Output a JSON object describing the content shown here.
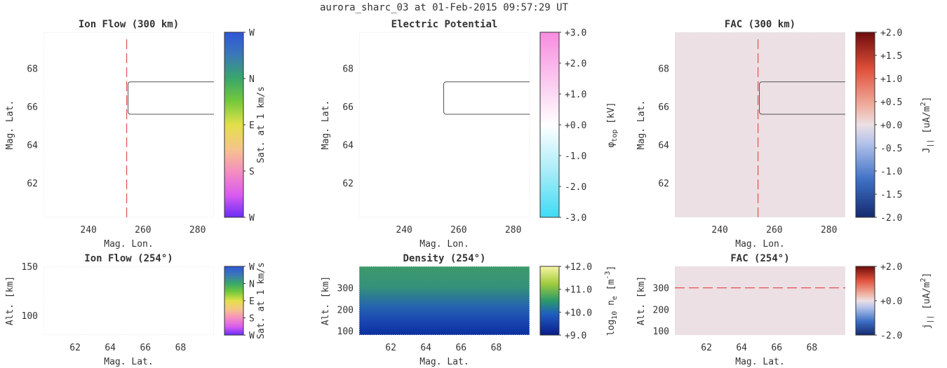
{
  "figure": {
    "title": "aurora_sharc_03 at 01-Feb-2015 09:57:29 UT"
  },
  "colors": {
    "background": "#ffffff",
    "fac_background": "#ece0e4",
    "density_top": "#3b9a6e",
    "density_bottom": "#1535a8",
    "dashed_marker": "#e05050",
    "contour": "#555555"
  },
  "chart_data": [
    {
      "id": "ion-flow-300",
      "type": "heatmap",
      "title": "Ion Flow (300 km)",
      "xlabel": "Mag. Lon.",
      "ylabel": "Mag. Lat.",
      "xlim": [
        223.5,
        286
      ],
      "ylim": [
        60.2,
        69.9
      ],
      "xticks": [
        "240",
        "260",
        "280"
      ],
      "xtick_values": [
        240,
        260,
        280
      ],
      "yticks": [
        "62",
        "64",
        "66",
        "68"
      ],
      "ytick_values": [
        62,
        64,
        66,
        68
      ],
      "background": "#ffffff",
      "vline_x": 254,
      "contour": {
        "x_start": 254.5,
        "y_bottom": 65.6,
        "y_top": 67.3
      },
      "colorbar": {
        "colormap": "direction",
        "ticks": [
          "W",
          "N",
          "E",
          "S",
          "W"
        ],
        "label": "Sat. at 1 km/s"
      }
    },
    {
      "id": "electric-potential",
      "type": "heatmap",
      "title": "Electric Potential",
      "xlabel": "Mag. Lon.",
      "ylabel": "Mag. Lat.",
      "xlim": [
        223.5,
        286
      ],
      "ylim": [
        60.2,
        69.9
      ],
      "xticks": [
        "240",
        "260",
        "280"
      ],
      "xtick_values": [
        240,
        260,
        280
      ],
      "yticks": [
        "62",
        "64",
        "66",
        "68"
      ],
      "ytick_values": [
        62,
        64,
        66,
        68
      ],
      "background": "#ffffff",
      "contour": {
        "x_start": 254.5,
        "y_bottom": 65.6,
        "y_top": 67.3
      },
      "colorbar": {
        "colormap": "potential",
        "ticks": [
          "+3.0",
          "+2.0",
          "+1.0",
          "+0.0",
          "-1.0",
          "-2.0",
          "-3.0"
        ],
        "label": "φ top [kV]",
        "label_main": "φ",
        "label_sub": "top",
        "label_unit": " [kV]"
      }
    },
    {
      "id": "fac-300",
      "type": "heatmap",
      "title": "FAC (300 km)",
      "xlabel": "Mag. Lon.",
      "ylabel": "Mag. Lat.",
      "xlim": [
        223.5,
        286
      ],
      "ylim": [
        60.2,
        69.9
      ],
      "xticks": [
        "240",
        "260",
        "280"
      ],
      "xtick_values": [
        240,
        260,
        280
      ],
      "yticks": [
        "62",
        "64",
        "66",
        "68"
      ],
      "ytick_values": [
        62,
        64,
        66,
        68
      ],
      "background": "#ece0e4",
      "vline_x": 254,
      "contour": {
        "x_start": 254.5,
        "y_bottom": 65.6,
        "y_top": 67.3
      },
      "colorbar": {
        "colormap": "fac",
        "ticks": [
          "+2.0",
          "+1.5",
          "+1.0",
          "+0.5",
          "+0.0",
          "-0.5",
          "-1.0",
          "-1.5",
          "-2.0"
        ],
        "label": "J || [uA/m 2]",
        "label_main": "J",
        "label_sub": "||",
        "label_unit": " [uA/m",
        "label_sup": "2",
        "label_end": "]"
      }
    },
    {
      "id": "ion-flow-254",
      "type": "heatmap",
      "title": "Ion Flow (254°)",
      "xlabel": "Mag. Lat.",
      "ylabel": "Alt. [km]",
      "xlim": [
        60.2,
        69.9
      ],
      "ylim": [
        80,
        150
      ],
      "xticks": [
        "62",
        "64",
        "66",
        "68"
      ],
      "xtick_values": [
        62,
        64,
        66,
        68
      ],
      "yticks": [
        "100",
        "150"
      ],
      "ytick_values": [
        100,
        150
      ],
      "background": "#ffffff",
      "colorbar": {
        "colormap": "direction",
        "ticks": [
          "W",
          "N",
          "E",
          "S",
          "W"
        ],
        "label": "Sat. at 1 km/s"
      }
    },
    {
      "id": "density-254",
      "type": "heatmap",
      "title": "Density (254°)",
      "xlabel": "Mag. Lat.",
      "ylabel": "Alt. [km]",
      "xlim": [
        60.2,
        69.9
      ],
      "ylim": [
        80,
        400
      ],
      "xticks": [
        "62",
        "64",
        "66",
        "68"
      ],
      "xtick_values": [
        62,
        64,
        66,
        68
      ],
      "yticks": [
        "100",
        "200",
        "300"
      ],
      "ytick_values": [
        100,
        200,
        300
      ],
      "background": "density",
      "colorbar": {
        "colormap": "density",
        "ticks": [
          "+12.0",
          "+11.0",
          "+10.0",
          "+9.0"
        ],
        "label": "log 10 n e [m -3]",
        "label_main": "log",
        "label_sub": "10",
        "label_mid": " n",
        "label_sub2": "e",
        "label_unit": " [m",
        "label_sup": "-3",
        "label_end": "]"
      }
    },
    {
      "id": "fac-254",
      "type": "heatmap",
      "title": "FAC (254°)",
      "xlabel": "Mag. Lat.",
      "ylabel": "Alt. [km]",
      "xlim": [
        60.2,
        69.9
      ],
      "ylim": [
        80,
        400
      ],
      "xticks": [
        "62",
        "64",
        "66",
        "68"
      ],
      "xtick_values": [
        62,
        64,
        66,
        68
      ],
      "yticks": [
        "100",
        "200",
        "300"
      ],
      "ytick_values": [
        100,
        200,
        300
      ],
      "background": "#ece0e4",
      "hline_y": 300,
      "colorbar": {
        "colormap": "fac",
        "ticks": [
          "+2.0",
          "+0.0",
          "-2.0"
        ],
        "label": "j || [uA/m 2]",
        "label_main": "j",
        "label_sub": "||",
        "label_unit": " [uA/m",
        "label_sup": "2",
        "label_end": "]"
      }
    }
  ]
}
